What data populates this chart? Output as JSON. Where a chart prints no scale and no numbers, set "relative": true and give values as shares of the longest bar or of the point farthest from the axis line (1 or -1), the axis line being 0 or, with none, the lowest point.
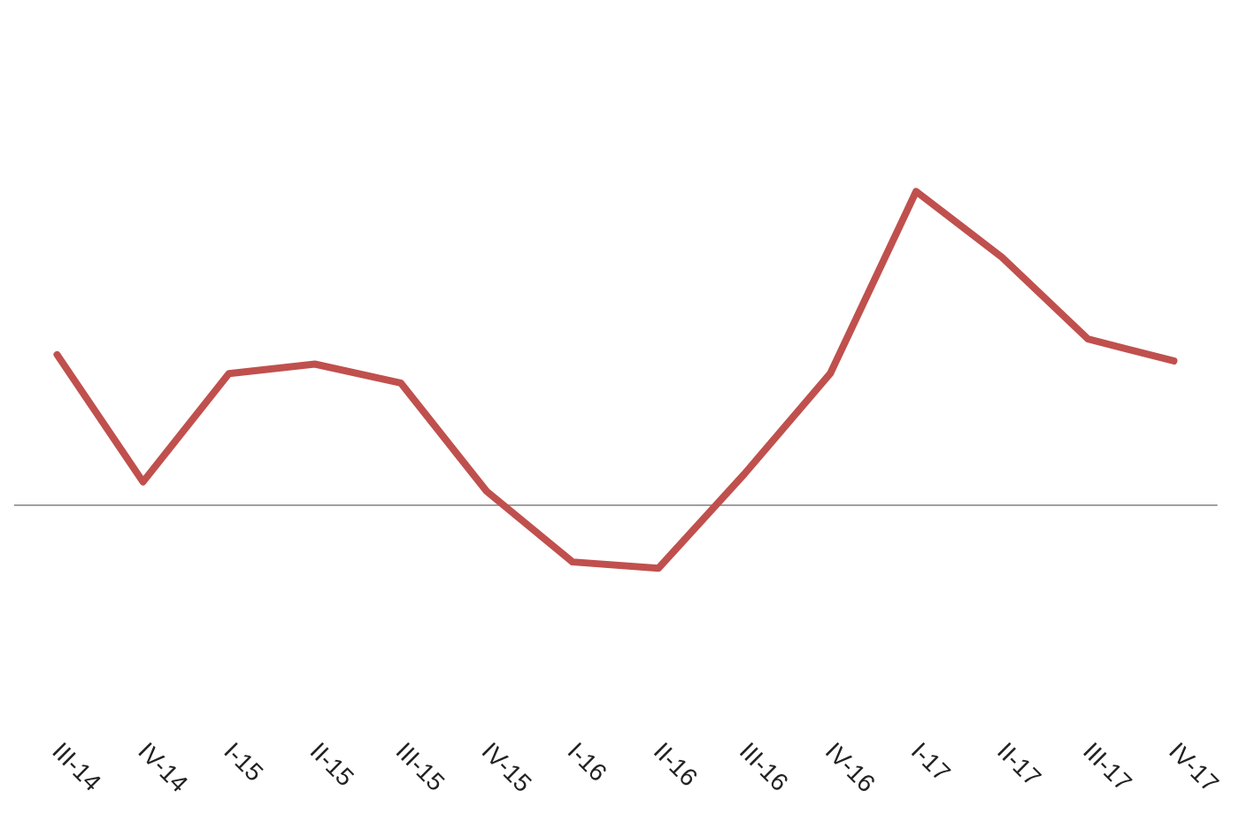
{
  "chart_data": {
    "type": "line",
    "relative": true,
    "categories": [
      "III-14",
      "IV-14",
      "I-15",
      "II-15",
      "III-15",
      "IV-15",
      "I-16",
      "II-16",
      "III-16",
      "IV-16",
      "I-17",
      "II-17",
      "III-17",
      "IV-17"
    ],
    "series": [
      {
        "color": "#c0504d",
        "values": [
          0.48,
          0.075,
          0.42,
          0.45,
          0.39,
          0.045,
          -0.18,
          -0.2,
          0.1,
          0.42,
          1,
          0.79,
          0.53,
          0.46
        ]
      }
    ],
    "grid": false,
    "marker": "none",
    "line_style": "solid"
  }
}
